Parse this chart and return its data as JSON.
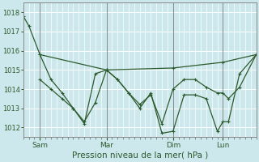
{
  "title": "",
  "xlabel": "Pression niveau de la mer( hPa )",
  "background_color": "#cce8ec",
  "grid_color": "#ffffff",
  "line_color": "#2d5a2d",
  "ylim": [
    1011.5,
    1018.5
  ],
  "yticks": [
    1012,
    1013,
    1014,
    1015,
    1016,
    1017,
    1018
  ],
  "xlim": [
    0,
    252
  ],
  "day_positions": [
    18,
    90,
    162,
    216
  ],
  "day_labels": [
    "Sam",
    "Mar",
    "Dim",
    "Lun"
  ],
  "series1_x": [
    0,
    6,
    18,
    90,
    162,
    216,
    252
  ],
  "series1_y": [
    1017.8,
    1017.3,
    1015.8,
    1015.0,
    1015.1,
    1015.4,
    1015.8
  ],
  "series2_x": [
    18,
    30,
    42,
    54,
    66,
    78,
    90,
    102,
    114,
    126,
    138,
    150,
    162,
    174,
    186,
    198,
    210,
    216,
    222,
    234,
    252
  ],
  "series2_y": [
    1015.8,
    1014.5,
    1013.8,
    1013.0,
    1012.2,
    1014.8,
    1015.0,
    1014.5,
    1013.8,
    1013.2,
    1013.7,
    1012.2,
    1014.0,
    1014.5,
    1014.5,
    1014.1,
    1013.8,
    1013.8,
    1013.5,
    1014.1,
    1015.8
  ],
  "series3_x": [
    18,
    30,
    42,
    54,
    66,
    78,
    90,
    102,
    114,
    126,
    138,
    150,
    162,
    174,
    186,
    198,
    210,
    216,
    222,
    234,
    252
  ],
  "series3_y": [
    1014.5,
    1014.0,
    1013.5,
    1013.0,
    1012.3,
    1013.3,
    1015.0,
    1014.5,
    1013.8,
    1013.0,
    1013.8,
    1011.7,
    1011.8,
    1013.7,
    1013.7,
    1013.5,
    1011.8,
    1012.3,
    1012.3,
    1014.8,
    1015.8
  ]
}
